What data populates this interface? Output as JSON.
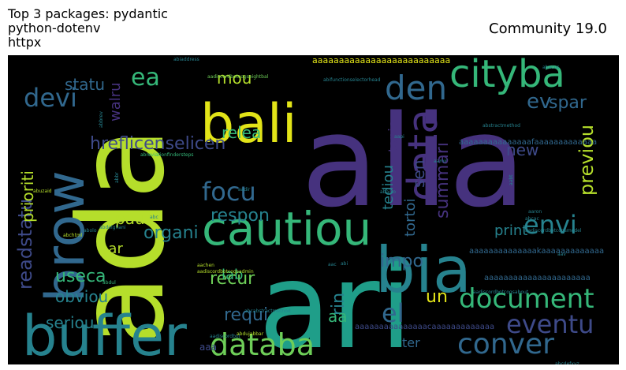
{
  "header": {
    "title_lines": [
      "Top 3 packages: pydantic",
      "python-dotenv",
      "httpx"
    ],
    "community_label": "Community 19.0"
  },
  "chart_data": {
    "type": "wordcloud",
    "title": "Top 3 packages: pydantic\npython-dotenv\nhttpx",
    "subtitle": "Community 19.0",
    "background": "#000000",
    "colormap": "viridis",
    "palette": {
      "purple": "#46327e",
      "indigo": "#3e4a89",
      "blue": "#31688e",
      "teal": "#26828e",
      "green": "#1f9e89",
      "mint": "#35b779",
      "lime": "#6ece58",
      "yellowgreen": "#b5de2b",
      "yellow": "#e2e418",
      "darkpurple": "#482475"
    },
    "words": [
      {
        "text": "alia",
        "weight": 100,
        "color": "#46327e"
      },
      {
        "text": "ada",
        "weight": 95,
        "color": "#b5de2b"
      },
      {
        "text": "ari",
        "weight": 92,
        "color": "#1f9e89"
      },
      {
        "text": "brow",
        "weight": 70,
        "color": "#31688e"
      },
      {
        "text": "bali",
        "weight": 60,
        "color": "#e2e418"
      },
      {
        "text": "buffer",
        "weight": 58,
        "color": "#26828e"
      },
      {
        "text": "bia",
        "weight": 58,
        "color": "#26828e"
      },
      {
        "text": "cautiou",
        "weight": 52,
        "color": "#35b779"
      },
      {
        "text": "data",
        "weight": 42,
        "color": "#46327e"
      },
      {
        "text": "cityba",
        "weight": 40,
        "color": "#35b779"
      },
      {
        "text": "den",
        "weight": 38,
        "color": "#31688e"
      },
      {
        "text": "databa",
        "weight": 36,
        "color": "#6ece58"
      },
      {
        "text": "document",
        "weight": 34,
        "color": "#35b779"
      },
      {
        "text": "conver",
        "weight": 34,
        "color": "#31688e"
      },
      {
        "text": "eventu",
        "weight": 32,
        "color": "#3e4a89"
      },
      {
        "text": "envi",
        "weight": 30,
        "color": "#26828e"
      },
      {
        "text": "devi",
        "weight": 32,
        "color": "#31688e"
      },
      {
        "text": "readstatu",
        "weight": 28,
        "color": "#3e4a89"
      },
      {
        "text": "focu",
        "weight": 28,
        "color": "#31688e"
      },
      {
        "text": "ea",
        "weight": 28,
        "color": "#35b779"
      },
      {
        "text": "el",
        "weight": 26,
        "color": "#31688e"
      },
      {
        "text": "previou",
        "weight": 24,
        "color": "#b5de2b"
      },
      {
        "text": "summari",
        "weight": 22,
        "color": "#46327e"
      },
      {
        "text": "ev",
        "weight": 22,
        "color": "#31688e"
      },
      {
        "text": "spar",
        "weight": 22,
        "color": "#31688e"
      },
      {
        "text": "hreflicenselicen",
        "weight": 20,
        "color": "#3e4a89"
      },
      {
        "text": "prioriti",
        "weight": 20,
        "color": "#b5de2b"
      },
      {
        "text": "respon",
        "weight": 20,
        "color": "#26828e"
      },
      {
        "text": "organi",
        "weight": 20,
        "color": "#26828e"
      },
      {
        "text": "useca",
        "weight": 20,
        "color": "#35b779"
      },
      {
        "text": "recur",
        "weight": 20,
        "color": "#6ece58"
      },
      {
        "text": "impo",
        "weight": 20,
        "color": "#31688e"
      },
      {
        "text": "obviou",
        "weight": 20,
        "color": "#26828e"
      },
      {
        "text": "requi",
        "weight": 20,
        "color": "#31688e"
      },
      {
        "text": "seriou",
        "weight": 20,
        "color": "#26828e"
      },
      {
        "text": "relea",
        "weight": 18,
        "color": "#35b779"
      },
      {
        "text": "walru",
        "weight": 18,
        "color": "#46327e"
      },
      {
        "text": "mou",
        "weight": 18,
        "color": "#b5de2b"
      },
      {
        "text": "statu",
        "weight": 18,
        "color": "#31688e"
      },
      {
        "text": "new",
        "weight": 18,
        "color": "#3e4a89"
      },
      {
        "text": "sen",
        "weight": 18,
        "color": "#3e4a89"
      },
      {
        "text": "topic",
        "weight": 18,
        "color": "#46327e"
      },
      {
        "text": "tediou",
        "weight": 18,
        "color": "#26828e"
      },
      {
        "text": "tortoi",
        "weight": 18,
        "color": "#31688e"
      },
      {
        "text": "print",
        "weight": 18,
        "color": "#26828e"
      },
      {
        "text": "pau",
        "weight": 18,
        "color": "#b5de2b"
      },
      {
        "text": "par",
        "weight": 18,
        "color": "#b5de2b"
      },
      {
        "text": "lab",
        "weight": 18,
        "color": "#35b779"
      },
      {
        "text": "un",
        "weight": 18,
        "color": "#e2e418"
      },
      {
        "text": "rin",
        "weight": 18,
        "color": "#26828e"
      },
      {
        "text": "aa",
        "weight": 18,
        "color": "#35b779"
      },
      {
        "text": "ter",
        "weight": 16,
        "color": "#31688e"
      },
      {
        "text": "aaa",
        "weight": 12,
        "color": "#3e4a89"
      },
      {
        "text": "aaaaaaaaaaaaaaaaaaaaaaaaaa",
        "weight": 10,
        "color": "#e2e418"
      },
      {
        "text": "aaaaaaaaaaaaaaaaaaaaaa",
        "weight": 8,
        "color": "#31688e"
      },
      {
        "text": "aaaaaaaaaaaaaaafaaaaaaaaaaaaa",
        "weight": 8,
        "color": "#31688e"
      },
      {
        "text": "aaaaaaaaaaaaaakaaaaaaaaaaaaa",
        "weight": 8,
        "color": "#31688e"
      },
      {
        "text": "aaaaaaaaaaaaaaacaaaaaaaaaaaaa",
        "weight": 8,
        "color": "#3e4a89"
      },
      {
        "text": "aadiscordbotcogsmodel",
        "weight": 6,
        "color": "#26828e"
      },
      {
        "text": "aadiscordbotcogsabout",
        "weight": 6,
        "color": "#26828e"
      },
      {
        "text": "aadiscordbotcogsadmin",
        "weight": 6,
        "color": "#b5de2b"
      },
      {
        "text": "aadiscordbotcogseightbal",
        "weight": 6,
        "color": "#6ece58"
      },
      {
        "text": "aadiscordbot",
        "weight": 6,
        "color": "#26828e"
      },
      {
        "text": "abiaddress",
        "weight": 5,
        "color": "#26828e"
      },
      {
        "text": "abifunctionselectorhead",
        "weight": 5,
        "color": "#26828e"
      },
      {
        "text": "abstractmethod",
        "weight": 5,
        "color": "#26828e"
      },
      {
        "text": "abcabstractmethod",
        "weight": 5,
        "color": "#26828e"
      },
      {
        "text": "abbrev",
        "weight": 5,
        "color": "#26828e"
      },
      {
        "text": "abuzaid",
        "weight": 5,
        "color": "#b5de2b"
      },
      {
        "text": "abreviationfindersteps",
        "weight": 5,
        "color": "#35b779"
      },
      {
        "text": "abdelghani",
        "weight": 5,
        "color": "#26828e"
      },
      {
        "text": "abchtml",
        "weight": 5,
        "color": "#b5de2b"
      },
      {
        "text": "aachen",
        "weight": 5,
        "color": "#b5de2b"
      },
      {
        "text": "abdul",
        "weight": 5,
        "color": "#35b779"
      },
      {
        "text": "aadir",
        "weight": 5,
        "color": "#26828e"
      },
      {
        "text": "abaixo",
        "weight": 5,
        "color": "#26828e"
      },
      {
        "text": "abcdefxyz",
        "weight": 5,
        "color": "#26828e"
      },
      {
        "text": "abdujabbar",
        "weight": 5,
        "color": "#b5de2b"
      },
      {
        "text": "abc",
        "weight": 5,
        "color": "#26828e"
      },
      {
        "text": "abbr",
        "weight": 5,
        "color": "#26828e"
      },
      {
        "text": "aav",
        "weight": 5,
        "color": "#26828e"
      },
      {
        "text": "aapi",
        "weight": 5,
        "color": "#26828e"
      },
      {
        "text": "aabt",
        "weight": 5,
        "color": "#26828e"
      },
      {
        "text": "abacus",
        "weight": 5,
        "color": "#26828e"
      },
      {
        "text": "aac",
        "weight": 5,
        "color": "#26828e"
      },
      {
        "text": "abi",
        "weight": 5,
        "color": "#26828e"
      },
      {
        "text": "aamir",
        "weight": 5,
        "color": "#26828e"
      },
      {
        "text": "abcac",
        "weight": 5,
        "color": "#26828e"
      },
      {
        "text": "abolo",
        "weight": 4,
        "color": "#26828e"
      },
      {
        "text": "aaron",
        "weight": 4,
        "color": "#26828e"
      }
    ]
  }
}
